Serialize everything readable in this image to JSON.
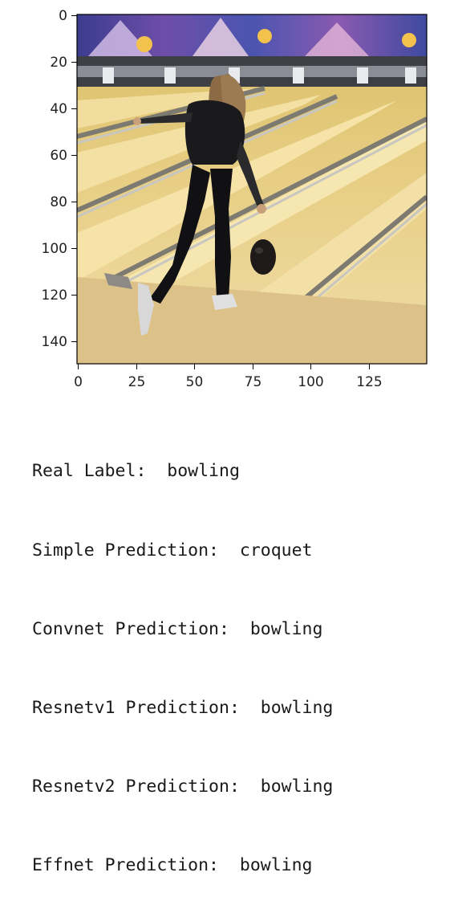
{
  "figure": {
    "image_description": "bowling-alley-photo",
    "x_ticks": [
      "0",
      "25",
      "50",
      "75",
      "100",
      "125"
    ],
    "y_ticks": [
      "0",
      "20",
      "40",
      "60",
      "80",
      "100",
      "120",
      "140"
    ]
  },
  "output": {
    "lines": [
      "Real Label:  bowling",
      "Simple Prediction:  croquet",
      "Convnet Prediction:  bowling",
      "Resnetv1 Prediction:  bowling",
      "Resnetv2 Prediction:  bowling",
      "Effnet Prediction:  bowling"
    ]
  }
}
